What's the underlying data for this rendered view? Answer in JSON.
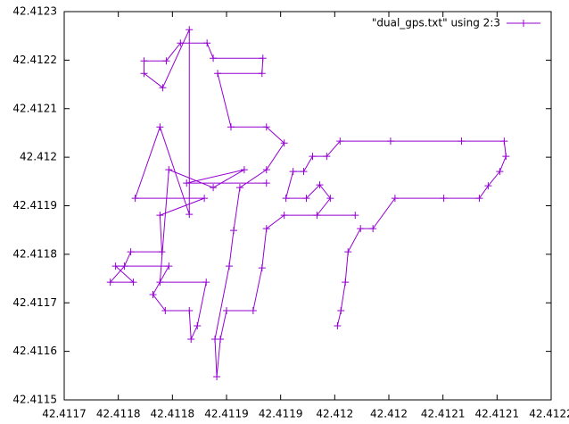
{
  "chart_data": {
    "type": "line",
    "point_marker": "+",
    "legend": "top-right",
    "xlim": [
      42.4117,
      42.41215
    ],
    "ylim": [
      42.4115,
      42.4123
    ],
    "xticks": [
      42.4117,
      {
        "value": 42.41175,
        "label": "42.4118"
      },
      42.4118,
      {
        "value": 42.41185,
        "label": "42.4119"
      },
      42.4119,
      {
        "value": 42.41195,
        "label": "42.412"
      },
      42.412,
      {
        "value": 42.41205,
        "label": "42.4121"
      },
      42.4121,
      {
        "value": 42.41215,
        "label": "42.4122"
      }
    ],
    "yticks": [
      42.4115,
      42.4116,
      42.4117,
      42.4118,
      42.4119,
      42.412,
      42.4121,
      42.4122,
      42.4123
    ],
    "x": [
      42.4119525,
      42.4119557,
      42.4119598,
      42.4119623,
      42.4119738,
      42.4119853,
      42.4120057,
      42.4120508,
      42.4120836,
      42.4120918,
      42.4121025,
      42.4121082,
      42.4121066,
      42.4120672,
      42.4120016,
      42.4119549,
      42.4119426,
      42.4119295,
      42.4119213,
      42.4119115,
      42.4119049,
      42.4119238,
      42.4119361,
      42.4119459,
      42.4119336,
      42.4119689,
      42.4119033,
      42.4118869,
      42.4118828,
      42.4118746,
      42.41185,
      42.4118443,
      42.411841,
      42.4118393,
      42.4118525,
      42.4118566,
      42.4118623,
      42.4118869,
      42.4119033,
      42.4118869,
      42.4118541,
      42.4118418,
      42.4118828,
      42.4118836,
      42.4118377,
      42.411832,
      42.4118074,
      42.4117943,
      42.4117738,
      42.4117738,
      42.411791,
      42.4118156,
      42.4118156,
      42.4117885,
      42.4117656,
      42.4118295,
      42.4117885,
      42.4117902,
      42.4117615,
      42.4117557,
      42.4117426,
      42.4117639,
      42.4117475,
      42.4117967,
      42.411782,
      42.4117934,
      42.4118156,
      42.4118172,
      42.411823,
      42.4118312,
      42.4117885,
      42.4117967,
      42.4118377,
      42.4118664,
      42.4118131,
      42.4118869
    ],
    "series": [
      {
        "name": "\"dual_gps.txt\" using 2:3",
        "color": "#9400d3",
        "values": [
          42.4116526,
          42.4116838,
          42.4117426,
          42.4118051,
          42.4118529,
          42.4118529,
          42.4119154,
          42.4119154,
          42.4119154,
          42.4119411,
          42.4119705,
          42.4120018,
          42.412033,
          42.412033,
          42.412033,
          42.412033,
          42.4120018,
          42.4120018,
          42.4119705,
          42.4119705,
          42.4119154,
          42.4119154,
          42.411943,
          42.4119154,
          42.4118805,
          42.4118805,
          42.4118805,
          42.4118529,
          42.411772,
          42.4116838,
          42.4116838,
          42.411625,
          42.4115478,
          42.411625,
          42.4117757,
          42.4118492,
          42.4119374,
          42.4119742,
          42.4120293,
          42.4120624,
          42.4120624,
          42.4121727,
          42.4121727,
          42.412204,
          42.412204,
          42.4122352,
          42.4122352,
          42.4121984,
          42.4121984,
          42.4121727,
          42.4121433,
          42.4122628,
          42.4118823,
          42.4120624,
          42.4119154,
          42.4119154,
          42.4118805,
          42.4118051,
          42.4118051,
          42.4117757,
          42.4117426,
          42.4117426,
          42.4117757,
          42.4117757,
          42.4117169,
          42.4116838,
          42.4116838,
          42.411625,
          42.4116526,
          42.4117426,
          42.4117426,
          42.4119742,
          42.4119374,
          42.4119742,
          42.4119466,
          42.4119466
        ]
      }
    ]
  }
}
